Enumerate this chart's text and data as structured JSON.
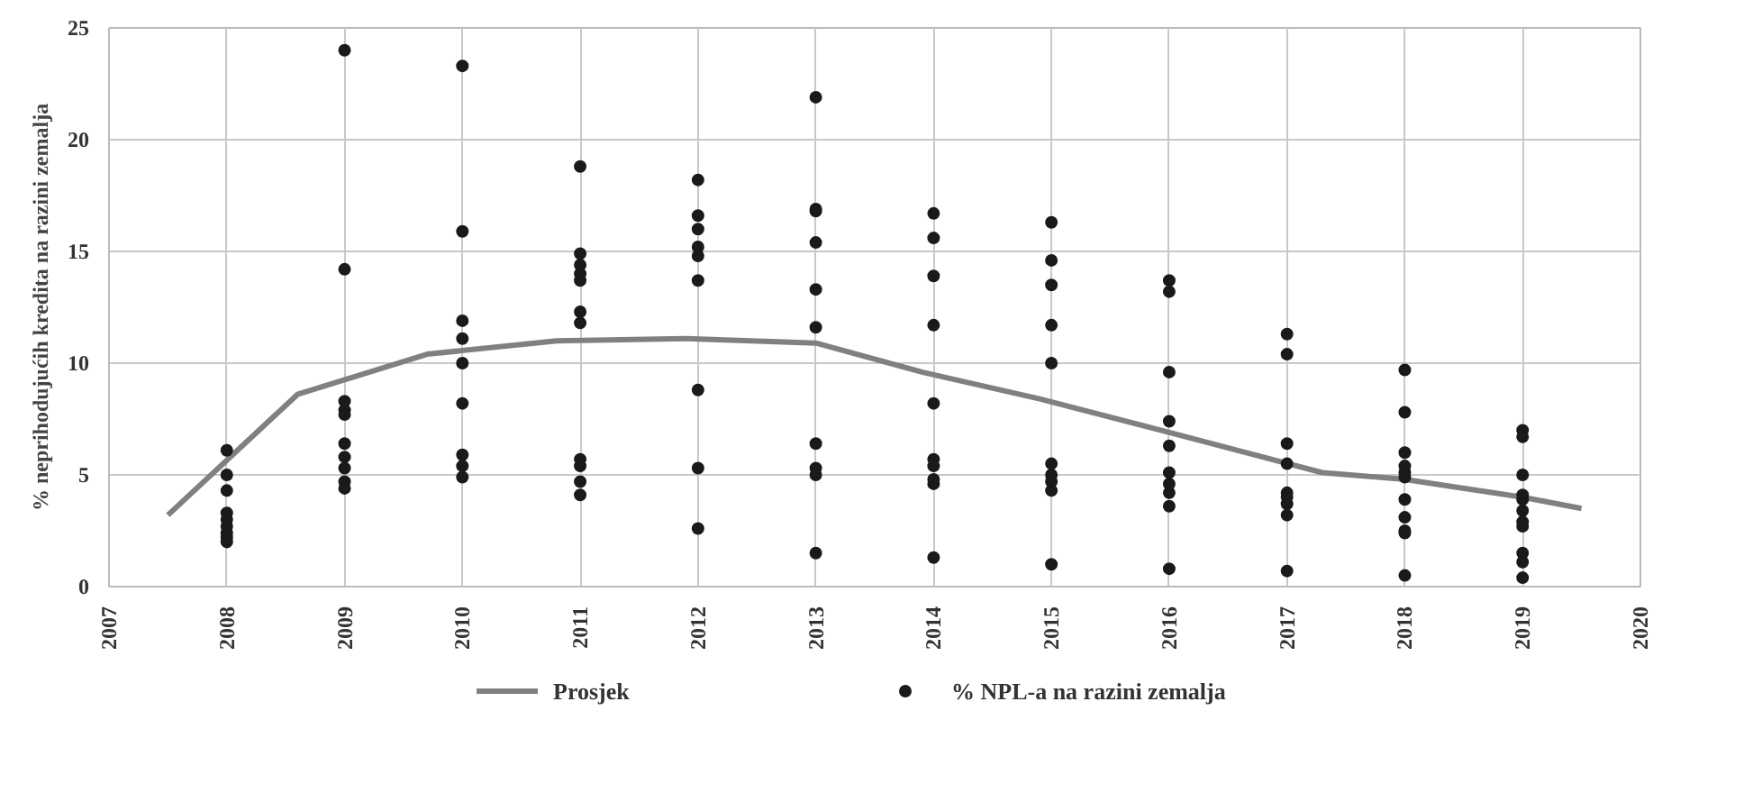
{
  "chart_data": {
    "type": "scatter",
    "ylabel": "% neprihodujućih kredita na razini zemalja",
    "xlim": [
      2007,
      2020
    ],
    "xticks": [
      2007,
      2008,
      2009,
      2010,
      2011,
      2012,
      2013,
      2014,
      2015,
      2016,
      2017,
      2018,
      2019,
      2020
    ],
    "ylim": [
      0,
      25
    ],
    "yticks": [
      0,
      5,
      10,
      15,
      20,
      25
    ],
    "grid": true,
    "legend": "bottom",
    "series": [
      {
        "type": "line",
        "name": "Prosjek",
        "color": "#808080",
        "x": [
          2007.5,
          2008.6,
          2009.7,
          2010.8,
          2011.9,
          2013.0,
          2013.9,
          2014.9,
          2016.0,
          2017.3,
          2018.0,
          2019.0,
          2019.5
        ],
        "values": [
          3.2,
          8.6,
          10.4,
          11.0,
          11.1,
          10.9,
          9.6,
          8.4,
          6.9,
          5.1,
          4.8,
          4.0,
          3.5
        ]
      },
      {
        "name": "% NPL-a na razini zemalja",
        "color": "#1a1a1a",
        "marker": "circle",
        "x": [
          2008,
          2008,
          2008,
          2008,
          2008,
          2008,
          2008,
          2008,
          2008,
          2009,
          2009,
          2009,
          2009,
          2009,
          2009,
          2009,
          2009,
          2009,
          2009,
          2010,
          2010,
          2010,
          2010,
          2010,
          2010,
          2010,
          2010,
          2010,
          2011,
          2011,
          2011,
          2011,
          2011,
          2011,
          2011,
          2011,
          2011,
          2011,
          2011,
          2012,
          2012,
          2012,
          2012,
          2012,
          2012,
          2012,
          2012,
          2012,
          2013,
          2013,
          2013,
          2013,
          2013,
          2013,
          2013,
          2013,
          2013,
          2013,
          2014,
          2014,
          2014,
          2014,
          2014,
          2014,
          2014,
          2014,
          2014,
          2014,
          2015,
          2015,
          2015,
          2015,
          2015,
          2015,
          2015,
          2015,
          2015,
          2015,
          2016,
          2016,
          2016,
          2016,
          2016,
          2016,
          2016,
          2016,
          2016,
          2016,
          2017,
          2017,
          2017,
          2017,
          2017,
          2017,
          2017,
          2017,
          2017,
          2018,
          2018,
          2018,
          2018,
          2018,
          2018,
          2018,
          2018,
          2018,
          2018,
          2018,
          2019,
          2019,
          2019,
          2019,
          2019,
          2019,
          2019,
          2019,
          2019,
          2019,
          2019
        ],
        "values": [
          6.1,
          5.0,
          4.3,
          3.3,
          3.0,
          2.7,
          2.4,
          2.2,
          2.0,
          24.0,
          14.2,
          8.3,
          7.9,
          7.7,
          6.4,
          5.8,
          5.3,
          4.7,
          4.4,
          23.3,
          15.9,
          11.9,
          11.1,
          10.0,
          8.2,
          5.9,
          5.4,
          4.9,
          18.8,
          14.9,
          14.4,
          14.0,
          13.7,
          12.3,
          11.8,
          5.7,
          5.4,
          4.7,
          4.1,
          18.2,
          16.6,
          16.0,
          15.2,
          14.8,
          13.7,
          8.8,
          5.3,
          2.6,
          21.9,
          16.9,
          16.8,
          15.4,
          13.3,
          11.6,
          6.4,
          5.3,
          5.0,
          1.5,
          16.7,
          15.6,
          13.9,
          11.7,
          8.2,
          5.7,
          5.4,
          4.8,
          4.6,
          1.3,
          16.3,
          14.6,
          13.5,
          11.7,
          10.0,
          5.5,
          5.0,
          4.7,
          4.3,
          1.0,
          13.7,
          13.2,
          9.6,
          7.4,
          6.3,
          5.1,
          4.6,
          4.2,
          3.6,
          0.8,
          11.3,
          10.4,
          6.4,
          5.5,
          4.2,
          4.0,
          3.7,
          3.2,
          0.7,
          9.7,
          7.8,
          6.0,
          5.4,
          5.1,
          4.9,
          3.9,
          3.1,
          2.5,
          2.4,
          0.5,
          7.0,
          6.7,
          5.0,
          4.1,
          3.9,
          3.4,
          2.9,
          2.7,
          1.5,
          1.1,
          0.4
        ]
      }
    ]
  }
}
